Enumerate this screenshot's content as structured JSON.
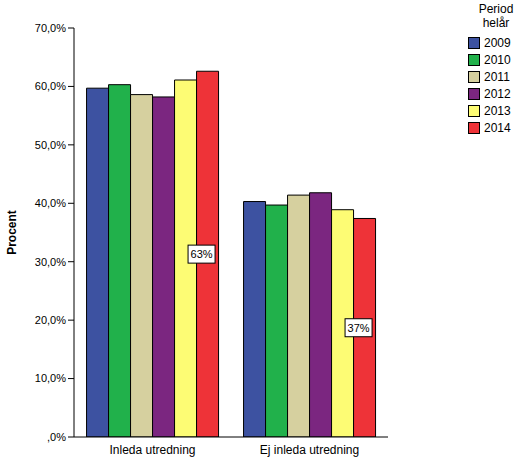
{
  "chart_data": {
    "type": "bar",
    "y_label": "Procent",
    "legend_title": "Period helår",
    "legend": "upper right",
    "grid": false,
    "categories": [
      "Inleda utredning",
      "Ej inleda utredning"
    ],
    "series": [
      {
        "name": "2009",
        "color": "#3d52a1",
        "values": [
          59.7,
          40.3
        ]
      },
      {
        "name": "2010",
        "color": "#21b14b",
        "values": [
          60.3,
          39.7
        ]
      },
      {
        "name": "2011",
        "color": "#d6d09f",
        "values": [
          58.6,
          41.4
        ]
      },
      {
        "name": "2012",
        "color": "#7b2680",
        "values": [
          58.2,
          41.8
        ]
      },
      {
        "name": "2013",
        "color": "#fdfc74",
        "values": [
          61.1,
          38.9
        ]
      },
      {
        "name": "2014",
        "color": "#ee3338",
        "values": [
          62.6,
          37.4
        ],
        "data_labels": true,
        "value_labels": [
          "63%",
          "37%"
        ]
      }
    ],
    "ylim": [
      0,
      70
    ],
    "yticks": [
      {
        "value": 0,
        "label": ",0%"
      },
      {
        "value": 10,
        "label": "10,0%"
      },
      {
        "value": 20,
        "label": "20,0%"
      },
      {
        "value": 30,
        "label": "30,0%"
      },
      {
        "value": 40,
        "label": "40,0%"
      },
      {
        "value": 50,
        "label": "50,0%"
      },
      {
        "value": 60,
        "label": "60,0%"
      },
      {
        "value": 70,
        "label": "70,0%"
      }
    ]
  }
}
